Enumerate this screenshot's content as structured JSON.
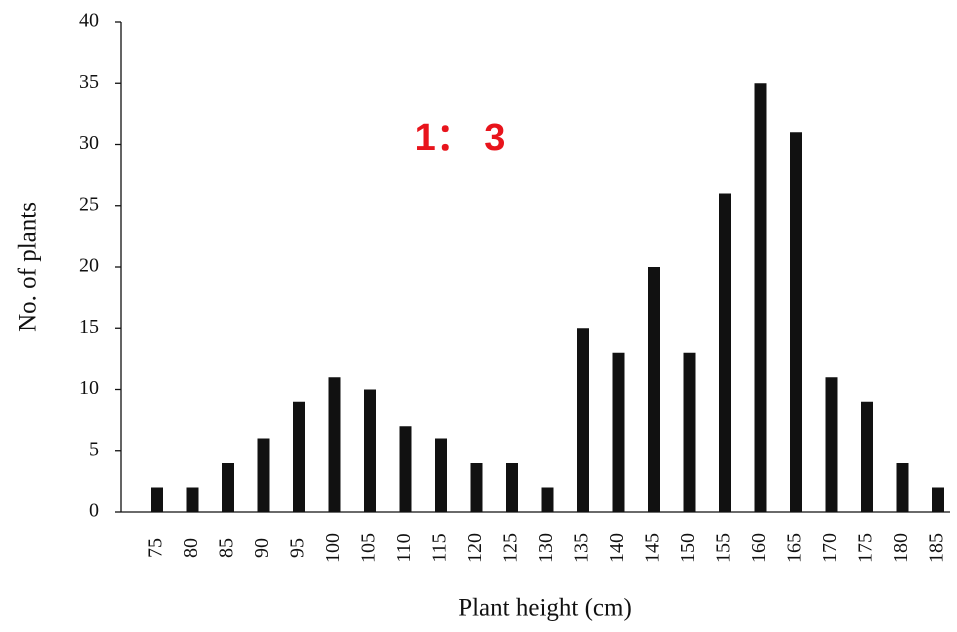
{
  "chart_data": {
    "type": "bar",
    "x_label": "Plant height (cm)",
    "y_label": "No. of plants",
    "annotation": "1： 3",
    "categories": [
      "75",
      "80",
      "85",
      "90",
      "95",
      "100",
      "105",
      "110",
      "115",
      "120",
      "125",
      "130",
      "135",
      "140",
      "145",
      "150",
      "155",
      "160",
      "165",
      "170",
      "175",
      "180",
      "185"
    ],
    "values": [
      2,
      2,
      4,
      6,
      9,
      11,
      10,
      7,
      6,
      4,
      4,
      2,
      15,
      13,
      20,
      13,
      26,
      35,
      31,
      11,
      9,
      4,
      2
    ],
    "color": "#111111",
    "annotation_color": "#e8141c",
    "ylim": [
      0,
      40
    ],
    "yticks": [
      0,
      5,
      10,
      15,
      20,
      25,
      30,
      35,
      40
    ]
  }
}
